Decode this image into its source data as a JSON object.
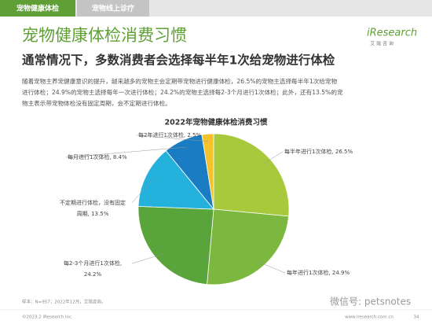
{
  "header": {
    "tabs": [
      "宠物健康体检",
      "宠物线上诊疗"
    ],
    "logo": "iResearch",
    "logo_sub": "艾 瑞 咨 询"
  },
  "title": "宠物健康体检消费习惯",
  "subtitle": "通常情况下，多数消费者会选择每半年1次给宠物进行体检",
  "paragraph": [
    "随着宠物主养宠健康意识的提升，越来越多的宠物主会定期带宠物进行健康体检，26.5%的宠物主选择每半年1次给宠物",
    "进行体检；24.9%的宠物主选择每年一次进行体检；24.2%的宠物主选择每2-3个月进行1次体检；此外，还有13.5%的宠",
    "物主表示带宠物体检没有固定周期，会不定期进行体检。"
  ],
  "chart_data": {
    "type": "pie",
    "title": "2022年宠物健康体检消费习惯",
    "values": [
      26.5,
      24.9,
      24.2,
      13.5,
      8.4,
      2.5
    ],
    "value_labels": [
      [
        "每半年进行1次体检, 26.5%"
      ],
      [
        "每年进行1次体检, 24.9%"
      ],
      [
        "每2-3个月进行1次体检,",
        "24.2%"
      ],
      [
        "不定期进行体检，没有固定",
        "周期, 13.5%"
      ],
      [
        "每月进行1次体检, 8.4%"
      ],
      [
        "每2年进行1次体检, 2.5%"
      ]
    ],
    "colors": [
      "#a9c93c",
      "#7cb83f",
      "#5aa53b",
      "#24b1dc",
      "#1a7cc2",
      "#f3c22c"
    ]
  },
  "footer": {
    "source": "样本：N=957；2022年12月，艾瑞咨询。",
    "copyright": "©2023.2 iResearch Inc.",
    "website": "www.iresearch.com.cn",
    "page": "34",
    "watermark": "微信号: petsnotes"
  }
}
